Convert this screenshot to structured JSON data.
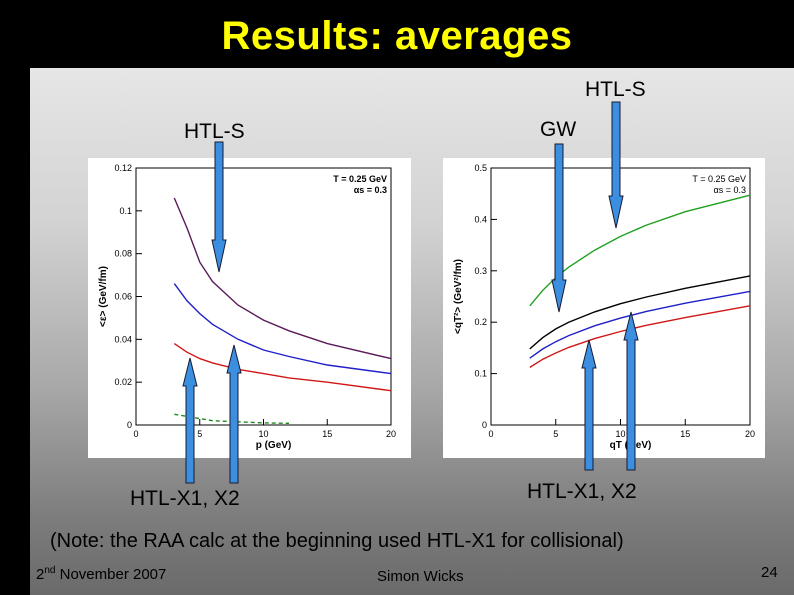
{
  "slide": {
    "title": "Results: averages",
    "labels": {
      "htl_s_left": "HTL-S",
      "htl_s_right": "HTL-S",
      "gw": "GW",
      "htl_x_left": "HTL-X1, X2",
      "htl_x_right": "HTL-X1, X2"
    },
    "note": "(Note: the RAA calc at the beginning used HTL-X1 for collisional)",
    "footer": {
      "date_day": "2",
      "date_suffix": "nd",
      "date_rest": " November 2007",
      "author": "Simon Wicks",
      "page": "24"
    },
    "arrow_color": "#3a8fe0"
  },
  "chart_data": [
    {
      "type": "line",
      "xlabel": "p (GeV)",
      "ylabel": "<ε> (GeV/fm)",
      "xlim": [
        0,
        20
      ],
      "ylim": [
        0,
        0.12
      ],
      "xticks": [
        0,
        5,
        10,
        15,
        20
      ],
      "yticks": [
        0,
        0.02,
        0.04,
        0.06,
        0.08,
        0.1,
        0.12
      ],
      "ytick_labels": [
        "0",
        "0.02",
        "0.04",
        "0.06",
        "0.08",
        "0.1",
        "0.12"
      ],
      "annotation": [
        "T = 0.25 GeV",
        "αs = 0.3"
      ],
      "series": [
        {
          "color": "#5a1a5a",
          "dash": false,
          "x": [
            3,
            4,
            5,
            6,
            8,
            10,
            12,
            15,
            20
          ],
          "y": [
            0.106,
            0.092,
            0.076,
            0.067,
            0.056,
            0.049,
            0.044,
            0.038,
            0.031
          ]
        },
        {
          "color": "#2020c8",
          "dash": false,
          "x": [
            3,
            4,
            5,
            6,
            8,
            10,
            12,
            15,
            20
          ],
          "y": [
            0.066,
            0.058,
            0.052,
            0.047,
            0.04,
            0.035,
            0.032,
            0.028,
            0.024
          ]
        },
        {
          "color": "#d01818",
          "dash": false,
          "x": [
            3,
            4,
            5,
            6,
            8,
            10,
            12,
            15,
            20
          ],
          "y": [
            0.038,
            0.034,
            0.031,
            0.029,
            0.026,
            0.024,
            0.022,
            0.02,
            0.016
          ]
        },
        {
          "color": "#208a20",
          "dash": true,
          "x": [
            3,
            4,
            5,
            6,
            8,
            10,
            12
          ],
          "y": [
            0.005,
            0.004,
            0.003,
            0.002,
            0.0015,
            0.001,
            0.0008
          ]
        }
      ]
    },
    {
      "type": "line",
      "xlabel": "qT (GeV)",
      "ylabel": "<qT²> (GeV²/fm)",
      "xlim": [
        0,
        20
      ],
      "ylim": [
        0,
        0.5
      ],
      "xticks": [
        0,
        5,
        10,
        15,
        20
      ],
      "yticks": [
        0,
        0.1,
        0.2,
        0.3,
        0.4,
        0.5
      ],
      "ytick_labels": [
        "0",
        "0.1",
        "0.2",
        "0.3",
        "0.4",
        "0.5"
      ],
      "annotation": [
        "T = 0.25 GeV",
        "αs = 0.3"
      ],
      "series": [
        {
          "color": "#20a020",
          "dash": false,
          "x": [
            3,
            4,
            5,
            6,
            8,
            10,
            12,
            15,
            20
          ],
          "y": [
            0.232,
            0.262,
            0.287,
            0.307,
            0.34,
            0.367,
            0.389,
            0.415,
            0.447
          ]
        },
        {
          "color": "#000000",
          "dash": false,
          "x": [
            3,
            4,
            5,
            6,
            8,
            10,
            12,
            15,
            20
          ],
          "y": [
            0.148,
            0.17,
            0.187,
            0.2,
            0.22,
            0.236,
            0.249,
            0.266,
            0.29
          ]
        },
        {
          "color": "#2020c8",
          "dash": false,
          "x": [
            3,
            4,
            5,
            6,
            8,
            10,
            12,
            15,
            20
          ],
          "y": [
            0.13,
            0.148,
            0.162,
            0.174,
            0.193,
            0.208,
            0.221,
            0.237,
            0.26
          ]
        },
        {
          "color": "#d01818",
          "dash": false,
          "x": [
            3,
            4,
            5,
            6,
            8,
            10,
            12,
            15,
            20
          ],
          "y": [
            0.112,
            0.128,
            0.14,
            0.151,
            0.168,
            0.182,
            0.194,
            0.209,
            0.232
          ]
        }
      ]
    }
  ]
}
